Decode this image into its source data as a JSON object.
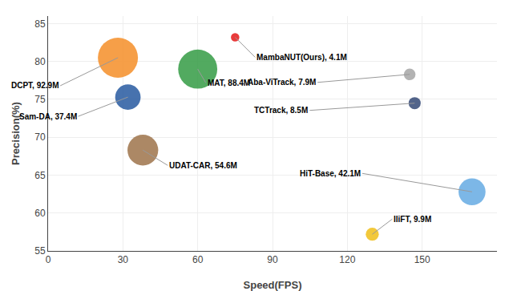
{
  "chart_data": {
    "type": "bubble",
    "xlabel": "Speed(FPS)",
    "ylabel": "Precision(%)",
    "x": [
      75,
      28,
      60,
      32,
      38,
      145,
      147,
      170,
      130
    ],
    "y": [
      83.2,
      80.5,
      79.0,
      75.3,
      68.3,
      78.3,
      74.5,
      62.8,
      57.2
    ],
    "sizes": [
      4.1,
      92.9,
      88.4,
      37.4,
      54.6,
      7.9,
      8.5,
      42.1,
      9.9
    ],
    "annotations": [
      "MambaNUT(Ours), 4.1M",
      "DCPT, 92.9M",
      "MAT, 88.4M",
      "Sam-DA, 37.4M",
      "UDAT-CAR, 54.6M",
      "Aba-ViTrack, 7.9M",
      "TCTrack, 8.5M",
      "HiT-Base, 42.1M",
      "IliFT, 9.9M"
    ],
    "colors": [
      "#e62020",
      "#f5922f",
      "#3a9e4a",
      "#2e5fa3",
      "#a07850",
      "#a8a8a8",
      "#3a4f7a",
      "#6aade4",
      "#f0c020"
    ],
    "xlim": [
      0,
      180
    ],
    "ylim": [
      55,
      86
    ],
    "xticks": [
      0,
      30,
      60,
      90,
      120,
      150
    ],
    "yticks": [
      55,
      60,
      65,
      70,
      75,
      80,
      85
    ],
    "grid": true
  }
}
